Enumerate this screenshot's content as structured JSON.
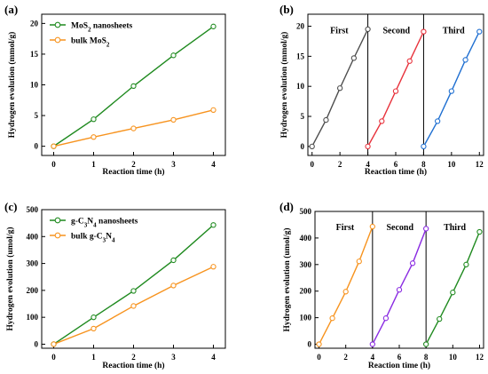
{
  "chart_data": [
    {
      "panel_label": "(a)",
      "type": "line",
      "xlabel": "Reaction time (h)",
      "ylabel": "Hydrogen evolution (mmol/g)",
      "xlim": [
        -0.3,
        4.3
      ],
      "ylim": [
        -1.5,
        21.5
      ],
      "xticks": [
        0,
        1,
        2,
        3,
        4
      ],
      "yticks": [
        0,
        5,
        10,
        15,
        20
      ],
      "legend_position": "top-left",
      "series": [
        {
          "name_parts": [
            "MoS",
            "2",
            " nanosheets"
          ],
          "color": "#1f8a1f",
          "marker": "circle",
          "x": [
            0,
            1,
            2,
            3,
            4
          ],
          "y": [
            0,
            4.4,
            9.8,
            14.8,
            19.5
          ]
        },
        {
          "name_parts": [
            "bulk MoS",
            "2",
            ""
          ],
          "color": "#f7931e",
          "marker": "circle",
          "x": [
            0,
            1,
            2,
            3,
            4
          ],
          "y": [
            0,
            1.5,
            2.9,
            4.3,
            5.9
          ]
        }
      ]
    },
    {
      "panel_label": "(b)",
      "type": "line",
      "xlabel": "Reaction time (h)",
      "ylabel": "Hydrogen evolution (mmol/g)",
      "xlim": [
        -0.3,
        12.3
      ],
      "ylim": [
        -1.5,
        22
      ],
      "xticks": [
        0,
        2,
        4,
        6,
        8,
        10,
        12
      ],
      "yticks": [
        0,
        5,
        10,
        15,
        20
      ],
      "dividers": [
        4,
        8
      ],
      "annotations": [
        {
          "text": "First",
          "x": 1.95,
          "y": 18.8
        },
        {
          "text": "Second",
          "x": 6.05,
          "y": 18.8
        },
        {
          "text": "Third",
          "x": 10.15,
          "y": 18.8
        }
      ],
      "series": [
        {
          "name_parts": [],
          "color": "#4d4d4d",
          "marker": "circle",
          "x": [
            0,
            1,
            2,
            3,
            4
          ],
          "y": [
            0,
            4.4,
            9.7,
            14.7,
            19.5
          ]
        },
        {
          "name_parts": [],
          "color": "#e8323c",
          "marker": "circle",
          "x": [
            4,
            5,
            6,
            7,
            8
          ],
          "y": [
            0,
            4.2,
            9.2,
            14.2,
            19.1
          ]
        },
        {
          "name_parts": [],
          "color": "#1f6fd1",
          "marker": "circle",
          "x": [
            8,
            9,
            10,
            11,
            12
          ],
          "y": [
            0,
            4.2,
            9.2,
            14.4,
            19.1
          ]
        }
      ]
    },
    {
      "panel_label": "(c)",
      "type": "line",
      "xlabel": "Reaction time (h)",
      "ylabel": "Hydrogen evolution (umol/g)",
      "xlim": [
        -0.3,
        4.3
      ],
      "ylim": [
        -15,
        500
      ],
      "xticks": [
        0,
        1,
        2,
        3,
        4
      ],
      "yticks": [
        0,
        100,
        200,
        300,
        400,
        500
      ],
      "legend_position": "top-left",
      "series": [
        {
          "name_parts": [
            "g-C",
            "3",
            "N",
            "4",
            " nanosheets"
          ],
          "color": "#1f8a1f",
          "marker": "circle",
          "x": [
            0,
            1,
            2,
            3,
            4
          ],
          "y": [
            0,
            100,
            198,
            312,
            443
          ]
        },
        {
          "name_parts": [
            "bulk g-C",
            "3",
            "N",
            "4",
            ""
          ],
          "color": "#f7931e",
          "marker": "circle",
          "x": [
            0,
            1,
            2,
            3,
            4
          ],
          "y": [
            0,
            58,
            142,
            218,
            288
          ]
        }
      ]
    },
    {
      "panel_label": "(d)",
      "type": "line",
      "xlabel": "Reaction time (h)",
      "ylabel": "Hydrogen evolution (umol/g)",
      "xlim": [
        -0.3,
        12.3
      ],
      "ylim": [
        -15,
        500
      ],
      "xticks": [
        0,
        2,
        4,
        6,
        8,
        10,
        12
      ],
      "yticks": [
        0,
        100,
        200,
        300,
        400,
        500
      ],
      "dividers": [
        4,
        8
      ],
      "annotations": [
        {
          "text": "First",
          "x": 1.95,
          "y": 430
        },
        {
          "text": "Second",
          "x": 6.05,
          "y": 430
        },
        {
          "text": "Third",
          "x": 10.15,
          "y": 430
        }
      ],
      "series": [
        {
          "name_parts": [],
          "color": "#f7931e",
          "marker": "circle",
          "x": [
            0,
            1,
            2,
            3,
            4
          ],
          "y": [
            0,
            98,
            198,
            312,
            443
          ]
        },
        {
          "name_parts": [],
          "color": "#8a2be2",
          "marker": "circle",
          "x": [
            4,
            5,
            6,
            7,
            8
          ],
          "y": [
            0,
            98,
            205,
            305,
            435
          ]
        },
        {
          "name_parts": [],
          "color": "#1f8a1f",
          "marker": "circle",
          "x": [
            8,
            9,
            10,
            11,
            12
          ],
          "y": [
            0,
            95,
            195,
            300,
            423
          ]
        }
      ]
    }
  ]
}
